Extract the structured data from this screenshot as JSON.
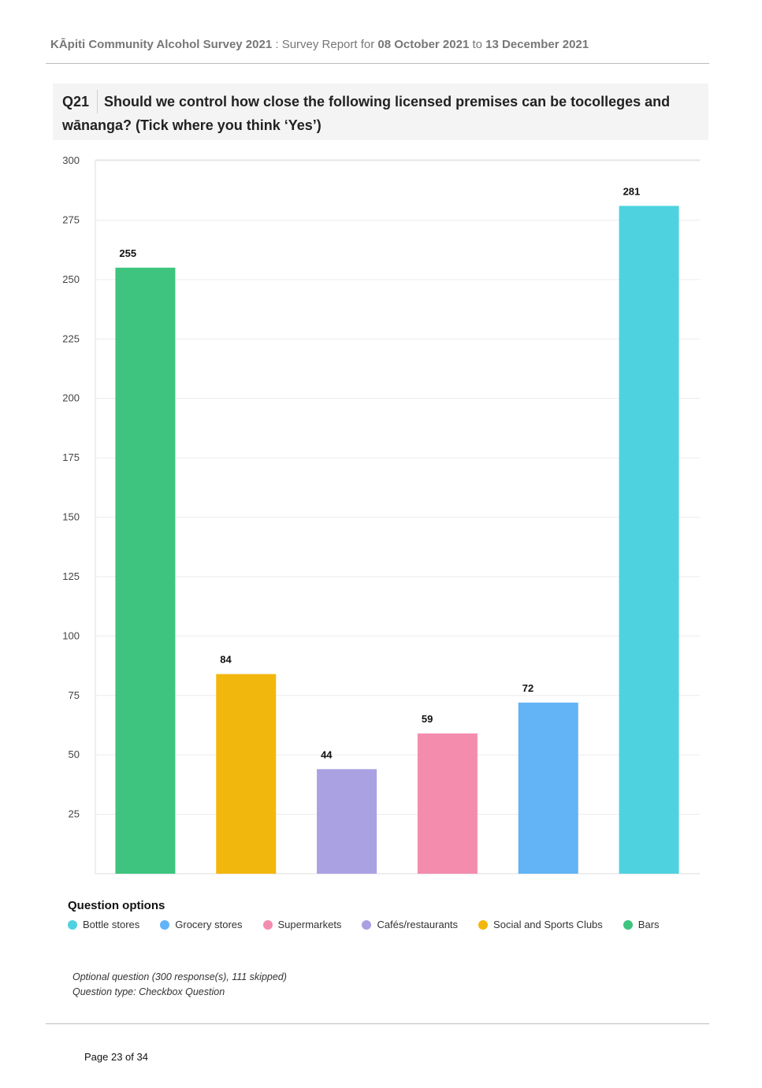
{
  "header": {
    "survey_name": "KĀpiti Community Alcohol Survey 2021",
    "separator": " : ",
    "report_for": "Survey Report for ",
    "start_date": "08 October 2021",
    "to": " to ",
    "end_date": "13 December 2021"
  },
  "question": {
    "number": "Q21",
    "text": "Should we control how close the following licensed premises can be tocolleges and wānanga? (Tick where you think ‘Yes’)"
  },
  "chart_data": {
    "type": "bar",
    "categories": [
      "Bars",
      "Social and Sports Clubs",
      "Cafés/restaurants",
      "Supermarkets",
      "Grocery stores",
      "Bottle stores"
    ],
    "values": [
      255,
      84,
      44,
      59,
      72,
      281
    ],
    "colors": [
      "#3ec47e",
      "#f2b70c",
      "#aaa1e3",
      "#f48cae",
      "#62b4f6",
      "#4fd2e0"
    ],
    "yticks": [
      25,
      50,
      75,
      100,
      125,
      150,
      175,
      200,
      225,
      250,
      275,
      300
    ],
    "ylim": [
      0,
      300
    ],
    "title": "",
    "xlabel": "",
    "ylabel": ""
  },
  "legend": {
    "title": "Question options",
    "items": [
      {
        "label": "Bottle stores",
        "color": "#4fd2e0"
      },
      {
        "label": "Grocery stores",
        "color": "#62b4f6"
      },
      {
        "label": "Supermarkets",
        "color": "#f48cae"
      },
      {
        "label": "Cafés/restaurants",
        "color": "#aaa1e3"
      },
      {
        "label": "Social and Sports Clubs",
        "color": "#f2b70c"
      },
      {
        "label": "Bars",
        "color": "#3ec47e"
      }
    ]
  },
  "meta": {
    "line1": "Optional question (300 response(s), 111 skipped)",
    "line2": "Question type: Checkbox Question"
  },
  "footer": {
    "page": "Page 23 of 34"
  }
}
